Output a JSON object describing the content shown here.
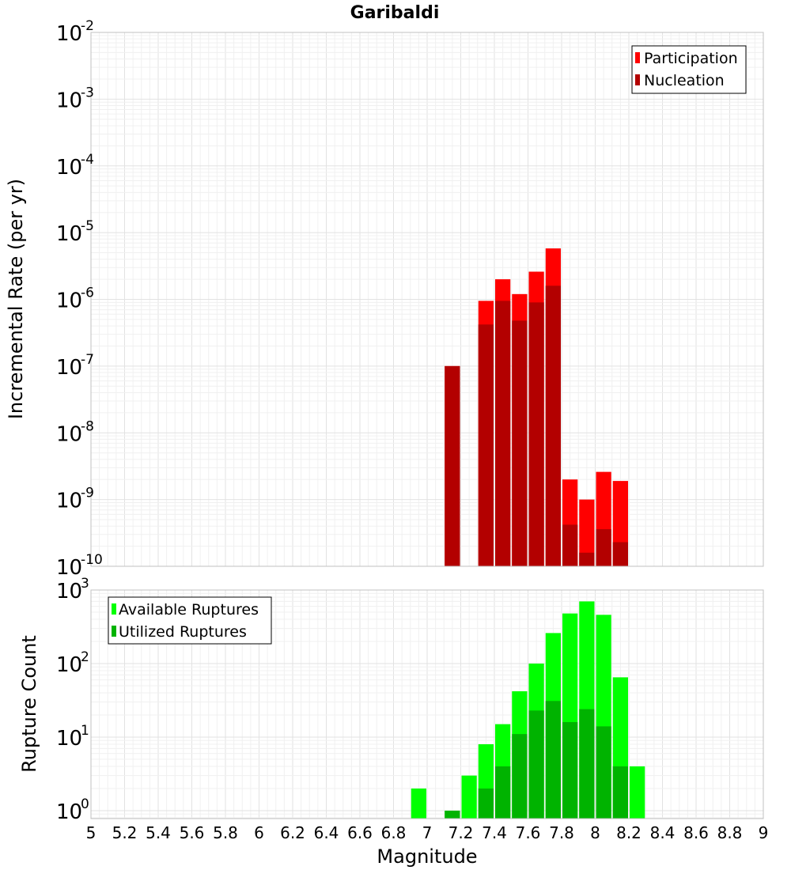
{
  "chart_data": [
    {
      "type": "bar",
      "title": "Garibaldi",
      "xlabel": "",
      "ylabel": "Incremental Rate (per yr)",
      "yscale": "log",
      "ylim": [
        1e-10,
        0.01
      ],
      "xlim": [
        5,
        9
      ],
      "bar_width": 0.1,
      "grid": true,
      "legend_position": "top-right",
      "y_ticks": [
        {
          "base": "10",
          "exp": "-10",
          "value": 1e-10
        },
        {
          "base": "10",
          "exp": "-9",
          "value": 1e-09
        },
        {
          "base": "10",
          "exp": "-8",
          "value": 1e-08
        },
        {
          "base": "10",
          "exp": "-7",
          "value": 1e-07
        },
        {
          "base": "10",
          "exp": "-6",
          "value": 1e-06
        },
        {
          "base": "10",
          "exp": "-5",
          "value": 1e-05
        },
        {
          "base": "10",
          "exp": "-4",
          "value": 0.0001
        },
        {
          "base": "10",
          "exp": "-3",
          "value": 0.001
        },
        {
          "base": "10",
          "exp": "-2",
          "value": 0.01
        }
      ],
      "series": [
        {
          "name": "Participation",
          "color": "#ff0000",
          "x": [
            7.15,
            7.35,
            7.45,
            7.55,
            7.65,
            7.75,
            7.85,
            7.95,
            8.05,
            8.15
          ],
          "values": [
            1e-07,
            9.5e-07,
            2e-06,
            1.2e-06,
            2.6e-06,
            5.8e-06,
            2e-09,
            1e-09,
            2.6e-09,
            1.9e-09
          ]
        },
        {
          "name": "Nucleation",
          "color": "#b30000",
          "x": [
            7.15,
            7.35,
            7.45,
            7.55,
            7.65,
            7.75,
            7.85,
            7.95,
            8.05,
            8.15
          ],
          "values": [
            1e-07,
            4.2e-07,
            9.5e-07,
            4.8e-07,
            9e-07,
            1.6e-06,
            4.2e-10,
            1.6e-10,
            3.6e-10,
            2.3e-10
          ]
        }
      ]
    },
    {
      "type": "bar",
      "title": "",
      "xlabel": "Magnitude",
      "ylabel": "Rupture Count",
      "yscale": "log",
      "ylim": [
        0.78,
        1000
      ],
      "xlim": [
        5,
        9
      ],
      "bar_width": 0.1,
      "grid": true,
      "legend_position": "top-left",
      "y_ticks": [
        {
          "base": "10",
          "exp": "0",
          "value": 1
        },
        {
          "base": "10",
          "exp": "1",
          "value": 10
        },
        {
          "base": "10",
          "exp": "2",
          "value": 100
        },
        {
          "base": "10",
          "exp": "3",
          "value": 1000
        }
      ],
      "series": [
        {
          "name": "Available Ruptures",
          "color": "#00ff00",
          "x": [
            6.95,
            7.15,
            7.25,
            7.35,
            7.45,
            7.55,
            7.65,
            7.75,
            7.85,
            7.95,
            8.05,
            8.15,
            8.25
          ],
          "values": [
            2,
            1,
            3,
            8,
            15,
            42,
            100,
            260,
            480,
            700,
            460,
            65,
            4
          ]
        },
        {
          "name": "Utilized Ruptures",
          "color": "#00b300",
          "x": [
            7.15,
            7.35,
            7.45,
            7.55,
            7.65,
            7.75,
            7.85,
            7.95,
            8.05,
            8.15
          ],
          "values": [
            1,
            2,
            4,
            11,
            23,
            31,
            16,
            24,
            14,
            4
          ]
        }
      ],
      "x_ticks": [
        "5",
        "5.2",
        "5.4",
        "5.6",
        "5.8",
        "6",
        "6.2",
        "6.4",
        "6.6",
        "6.8",
        "7",
        "7.2",
        "7.4",
        "7.6",
        "7.8",
        "8",
        "8.2",
        "8.4",
        "8.6",
        "8.8",
        "9"
      ]
    }
  ]
}
